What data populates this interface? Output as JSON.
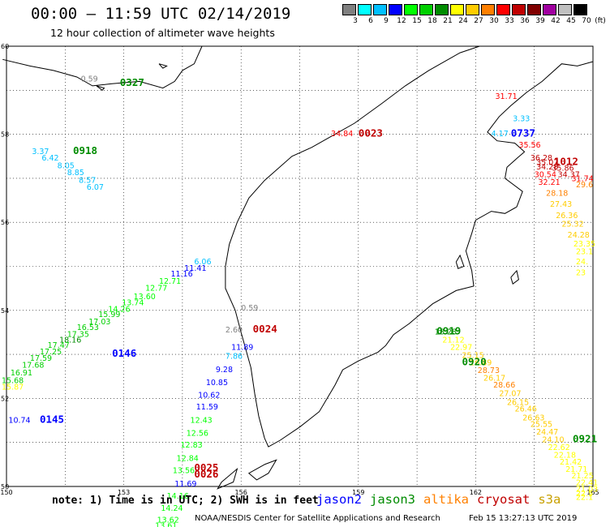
{
  "header": {
    "title": "00:00 – 11:59 UTC 02/14/2019",
    "subtitle": "12 hour collection of altimeter wave heights"
  },
  "colorbar": {
    "unit": "(ft)",
    "colors": [
      "#808080",
      "#00ffff",
      "#00c0ff",
      "#0000ff",
      "#00ff00",
      "#00d000",
      "#008c00",
      "#ffff00",
      "#ffcc00",
      "#ff8000",
      "#ff0000",
      "#c00000",
      "#800000",
      "#a000a0",
      "#c0c0c0",
      "#000000"
    ],
    "labels": [
      "3",
      "6",
      "9",
      "12",
      "15",
      "18",
      "21",
      "24",
      "27",
      "30",
      "33",
      "36",
      "39",
      "42",
      "45",
      "70"
    ]
  },
  "axes": {
    "lat_labels": [
      "60",
      "58",
      "56",
      "54",
      "52",
      "50"
    ],
    "lon_labels": [
      "150",
      "153",
      "156",
      "159",
      "162",
      "165"
    ]
  },
  "satellite_colors": {
    "jason2": "#0000ff",
    "jason3": "#008c00",
    "altika": "#ff8000",
    "cryosat": "#c00000",
    "s3a": "#c8a000"
  },
  "pass_labels": [
    {
      "text": "0327",
      "sat": "jason3",
      "lon": 152.9,
      "lat": 59.1
    },
    {
      "text": "0918",
      "sat": "jason3",
      "lon": 151.7,
      "lat": 57.55
    },
    {
      "text": "0023",
      "sat": "cryosat",
      "lon": 159.0,
      "lat": 57.95
    },
    {
      "text": "0737",
      "sat": "jason2",
      "lon": 162.9,
      "lat": 57.95
    },
    {
      "text": "1012",
      "sat": "cryosat",
      "lon": 164.0,
      "lat": 57.3
    },
    {
      "text": "0024",
      "sat": "cryosat",
      "lon": 156.3,
      "lat": 53.5
    },
    {
      "text": "0146",
      "sat": "jason2",
      "lon": 152.7,
      "lat": 52.95
    },
    {
      "text": "0145",
      "sat": "jason2",
      "lon": 150.85,
      "lat": 51.45
    },
    {
      "text": "0919",
      "sat": "jason3",
      "lon": 161.0,
      "lat": 53.45
    },
    {
      "text": "0920",
      "sat": "jason3",
      "lon": 161.65,
      "lat": 52.75
    },
    {
      "text": "0921",
      "sat": "jason3",
      "lon": 164.8,
      "lat": 51.0
    },
    {
      "text": "0025",
      "sat": "cryosat",
      "lon": 154.8,
      "lat": 50.35
    },
    {
      "text": "0026",
      "sat": "cryosat",
      "lon": 154.8,
      "lat": 50.2
    }
  ],
  "tracks": [
    {
      "sat": "jason3",
      "points": [
        {
          "lon": 151.9,
          "lat": 59.2,
          "v": "0.59",
          "c": "#808080"
        }
      ]
    },
    {
      "sat": "jason3",
      "points": [
        {
          "lon": 150.65,
          "lat": 57.55,
          "v": "3.37",
          "c": "#00c0ff"
        },
        {
          "lon": 150.9,
          "lat": 57.4,
          "v": "6.42",
          "c": "#00c0ff"
        },
        {
          "lon": 151.3,
          "lat": 57.23,
          "v": "8.05",
          "c": "#00c0ff"
        },
        {
          "lon": 151.55,
          "lat": 57.07,
          "v": "8.85",
          "c": "#00c0ff"
        },
        {
          "lon": 151.85,
          "lat": 56.9,
          "v": "8.57",
          "c": "#00c0ff"
        },
        {
          "lon": 152.05,
          "lat": 56.74,
          "v": "6.07",
          "c": "#00c0ff"
        }
      ]
    },
    {
      "sat": "cryosat",
      "points": [
        {
          "lon": 158.3,
          "lat": 57.96,
          "v": "34.84",
          "c": "#ff0000"
        },
        {
          "lon": 162.5,
          "lat": 58.8,
          "v": "31.71",
          "c": "#ff0000"
        }
      ]
    },
    {
      "sat": "jason2",
      "points": [
        {
          "lon": 162.95,
          "lat": 58.3,
          "v": "3.33",
          "c": "#00c0ff"
        },
        {
          "lon": 162.4,
          "lat": 57.96,
          "v": "4.17",
          "c": "#00c0ff"
        }
      ]
    },
    {
      "sat": "cryosat",
      "points": [
        {
          "lon": 163.1,
          "lat": 57.7,
          "v": "35.56",
          "c": "#ff0000"
        },
        {
          "lon": 163.4,
          "lat": 57.4,
          "v": "36.28",
          "c": "#c00000"
        },
        {
          "lon": 163.55,
          "lat": 57.3,
          "v": "35.07",
          "c": "#c00000"
        },
        {
          "lon": 163.55,
          "lat": 57.2,
          "v": "34.28",
          "c": "#c00000"
        },
        {
          "lon": 163.95,
          "lat": 57.17,
          "v": "35.86",
          "c": "#c00000"
        },
        {
          "lon": 163.5,
          "lat": 57.03,
          "v": "30.54",
          "c": "#ff0000"
        },
        {
          "lon": 164.1,
          "lat": 57.03,
          "v": "34.37",
          "c": "#c00000"
        },
        {
          "lon": 164.45,
          "lat": 56.93,
          "v": "31.74",
          "c": "#ff0000"
        },
        {
          "lon": 163.6,
          "lat": 56.85,
          "v": "32.21",
          "c": "#ff0000"
        },
        {
          "lon": 164.8,
          "lat": 56.8,
          "v": "29.6",
          "c": "#ff8000"
        },
        {
          "lon": 163.8,
          "lat": 56.6,
          "v": "28.18",
          "c": "#ff8000"
        },
        {
          "lon": 163.9,
          "lat": 56.35,
          "v": "27.43",
          "c": "#ffcc00"
        },
        {
          "lon": 164.05,
          "lat": 56.1,
          "v": "26.36",
          "c": "#ffcc00"
        },
        {
          "lon": 164.2,
          "lat": 55.9,
          "v": "25.32",
          "c": "#ffcc00"
        },
        {
          "lon": 164.35,
          "lat": 55.65,
          "v": "24.28",
          "c": "#ffcc00"
        },
        {
          "lon": 164.5,
          "lat": 55.45,
          "v": "23.35",
          "c": "#ffff00"
        },
        {
          "lon": 164.6,
          "lat": 55.28,
          "v": "23.1",
          "c": "#ffff00"
        },
        {
          "lon": 164.75,
          "lat": 55.05,
          "v": "24.",
          "c": "#ffff00"
        },
        {
          "lon": 164.85,
          "lat": 54.8,
          "v": "23",
          "c": "#ffff00"
        }
      ]
    },
    {
      "sat": "jason2",
      "points": [
        {
          "lon": 154.8,
          "lat": 55.05,
          "v": "6.06",
          "c": "#00c0ff"
        },
        {
          "lon": 154.55,
          "lat": 54.9,
          "v": "11.41",
          "c": "#0000ff"
        },
        {
          "lon": 154.2,
          "lat": 54.77,
          "v": "11.16",
          "c": "#0000ff"
        },
        {
          "lon": 153.9,
          "lat": 54.6,
          "v": "12.71",
          "c": "#00ff00"
        },
        {
          "lon": 153.55,
          "lat": 54.45,
          "v": "12.77",
          "c": "#00ff00"
        },
        {
          "lon": 153.25,
          "lat": 54.25,
          "v": "13.60",
          "c": "#00ff00"
        },
        {
          "lon": 152.95,
          "lat": 54.12,
          "v": "13.74",
          "c": "#00ff00"
        },
        {
          "lon": 152.6,
          "lat": 53.97,
          "v": "14.26",
          "c": "#00ff00"
        },
        {
          "lon": 152.35,
          "lat": 53.85,
          "v": "15.99",
          "c": "#00d000"
        },
        {
          "lon": 152.1,
          "lat": 53.68,
          "v": "17.03",
          "c": "#00d000"
        },
        {
          "lon": 151.8,
          "lat": 53.55,
          "v": "16.53",
          "c": "#00d000"
        },
        {
          "lon": 151.55,
          "lat": 53.4,
          "v": "17.35",
          "c": "#00d000"
        },
        {
          "lon": 151.35,
          "lat": 53.27,
          "v": "18.16",
          "c": "#008c00"
        },
        {
          "lon": 151.05,
          "lat": 53.15,
          "v": "17.47",
          "c": "#00d000"
        },
        {
          "lon": 150.85,
          "lat": 53.0,
          "v": "17.25",
          "c": "#00d000"
        },
        {
          "lon": 150.6,
          "lat": 52.85,
          "v": "17.59",
          "c": "#00d000"
        },
        {
          "lon": 150.4,
          "lat": 52.7,
          "v": "17.68",
          "c": "#00d000"
        },
        {
          "lon": 150.1,
          "lat": 52.52,
          "v": "16.91",
          "c": "#00d000"
        },
        {
          "lon": 149.85,
          "lat": 52.35,
          "v": "15.68",
          "c": "#00d000"
        },
        {
          "lon": 149.6,
          "lat": 52.2,
          "v": "15.87",
          "c": "#ffff00"
        }
      ]
    },
    {
      "sat": "jason2",
      "points": [
        {
          "lon": 150.05,
          "lat": 51.45,
          "v": "10.74",
          "c": "#0000ff"
        }
      ]
    },
    {
      "sat": "cryosat",
      "points": [
        {
          "lon": 156.0,
          "lat": 54.0,
          "v": "0.59",
          "c": "#808080"
        },
        {
          "lon": 155.6,
          "lat": 53.5,
          "v": "2.60",
          "c": "#808080"
        },
        {
          "lon": 155.75,
          "lat": 53.1,
          "v": "11.89",
          "c": "#0000ff"
        },
        {
          "lon": 155.6,
          "lat": 52.9,
          "v": "7.86",
          "c": "#00c0ff"
        },
        {
          "lon": 155.35,
          "lat": 52.6,
          "v": "9.28",
          "c": "#0000ff"
        },
        {
          "lon": 155.1,
          "lat": 52.3,
          "v": "10.85",
          "c": "#0000ff"
        },
        {
          "lon": 154.9,
          "lat": 52.02,
          "v": "10.62",
          "c": "#0000ff"
        },
        {
          "lon": 154.85,
          "lat": 51.75,
          "v": "11.59",
          "c": "#0000ff"
        },
        {
          "lon": 154.7,
          "lat": 51.45,
          "v": "12.43",
          "c": "#00ff00"
        },
        {
          "lon": 154.6,
          "lat": 51.15,
          "v": "12.56",
          "c": "#00ff00"
        },
        {
          "lon": 154.45,
          "lat": 50.88,
          "v": "12.83",
          "c": "#00ff00"
        },
        {
          "lon": 154.35,
          "lat": 50.58,
          "v": "12.84",
          "c": "#00ff00"
        },
        {
          "lon": 154.25,
          "lat": 50.3,
          "v": "13.56",
          "c": "#00ff00"
        },
        {
          "lon": 154.3,
          "lat": 50.0,
          "v": "11.69",
          "c": "#0000ff"
        },
        {
          "lon": 154.1,
          "lat": 49.72,
          "v": "14.16",
          "c": "#00ff00"
        },
        {
          "lon": 153.95,
          "lat": 49.45,
          "v": "14.24",
          "c": "#00ff00"
        },
        {
          "lon": 153.85,
          "lat": 49.18,
          "v": "13.62",
          "c": "#00ff00"
        },
        {
          "lon": 153.8,
          "lat": 49.05,
          "v": "13.61",
          "c": "#00ff00"
        }
      ]
    },
    {
      "sat": "altika",
      "points": [
        {
          "lon": 160.95,
          "lat": 53.45,
          "v": "18.28",
          "c": "#008c00"
        },
        {
          "lon": 161.15,
          "lat": 53.27,
          "v": "21.12",
          "c": "#ffff00"
        },
        {
          "lon": 161.35,
          "lat": 53.1,
          "v": "22.97",
          "c": "#ffff00"
        },
        {
          "lon": 161.65,
          "lat": 52.92,
          "v": "25.15",
          "c": "#ffcc00"
        },
        {
          "lon": 161.85,
          "lat": 52.75,
          "v": "26.89",
          "c": "#ffcc00"
        },
        {
          "lon": 162.05,
          "lat": 52.58,
          "v": "28.73",
          "c": "#ff8000"
        },
        {
          "lon": 162.2,
          "lat": 52.4,
          "v": "26.17",
          "c": "#ffcc00"
        },
        {
          "lon": 162.45,
          "lat": 52.25,
          "v": "28.66",
          "c": "#ff8000"
        },
        {
          "lon": 162.6,
          "lat": 52.05,
          "v": "27.07",
          "c": "#ffcc00"
        },
        {
          "lon": 162.8,
          "lat": 51.85,
          "v": "26.15",
          "c": "#ffcc00"
        },
        {
          "lon": 163.0,
          "lat": 51.7,
          "v": "26.46",
          "c": "#ffcc00"
        },
        {
          "lon": 163.2,
          "lat": 51.5,
          "v": "26.63",
          "c": "#ffcc00"
        },
        {
          "lon": 163.4,
          "lat": 51.35,
          "v": "25.55",
          "c": "#ffcc00"
        },
        {
          "lon": 163.55,
          "lat": 51.18,
          "v": "24.47",
          "c": "#ffcc00"
        },
        {
          "lon": 163.7,
          "lat": 51.0,
          "v": "24.10",
          "c": "#ffcc00"
        },
        {
          "lon": 163.85,
          "lat": 50.83,
          "v": "22.62",
          "c": "#ffff00"
        },
        {
          "lon": 164.0,
          "lat": 50.65,
          "v": "22.18",
          "c": "#ffff00"
        },
        {
          "lon": 164.15,
          "lat": 50.5,
          "v": "21.42",
          "c": "#ffff00"
        },
        {
          "lon": 164.3,
          "lat": 50.33,
          "v": "21.71",
          "c": "#ffff00"
        },
        {
          "lon": 164.45,
          "lat": 50.18,
          "v": "21.25",
          "c": "#ffff00"
        },
        {
          "lon": 164.6,
          "lat": 50.03,
          "v": "22.41",
          "c": "#ffff00"
        },
        {
          "lon": 164.75,
          "lat": 49.88,
          "v": "21.03",
          "c": "#ffff00"
        },
        {
          "lon": 164.85,
          "lat": 49.78,
          "v": "22.5",
          "c": "#ffff00"
        },
        {
          "lon": 164.95,
          "lat": 49.7,
          "v": "22.1",
          "c": "#ffff00"
        }
      ]
    }
  ],
  "footer": {
    "note": "note: 1) Time is in UTC; 2) SWH is in feet",
    "legend": [
      {
        "name": "jason2",
        "color": "#0000ff"
      },
      {
        "name": "jason3",
        "color": "#008c00"
      },
      {
        "name": "altika",
        "color": "#ff8000"
      },
      {
        "name": "cryosat",
        "color": "#c00000"
      },
      {
        "name": "s3a",
        "color": "#c8a000"
      }
    ],
    "credit": "NOAA/NESDIS Center for Satellite Applications and Research",
    "timestamp": "Feb 15 13:27:13 UTC 2019"
  }
}
